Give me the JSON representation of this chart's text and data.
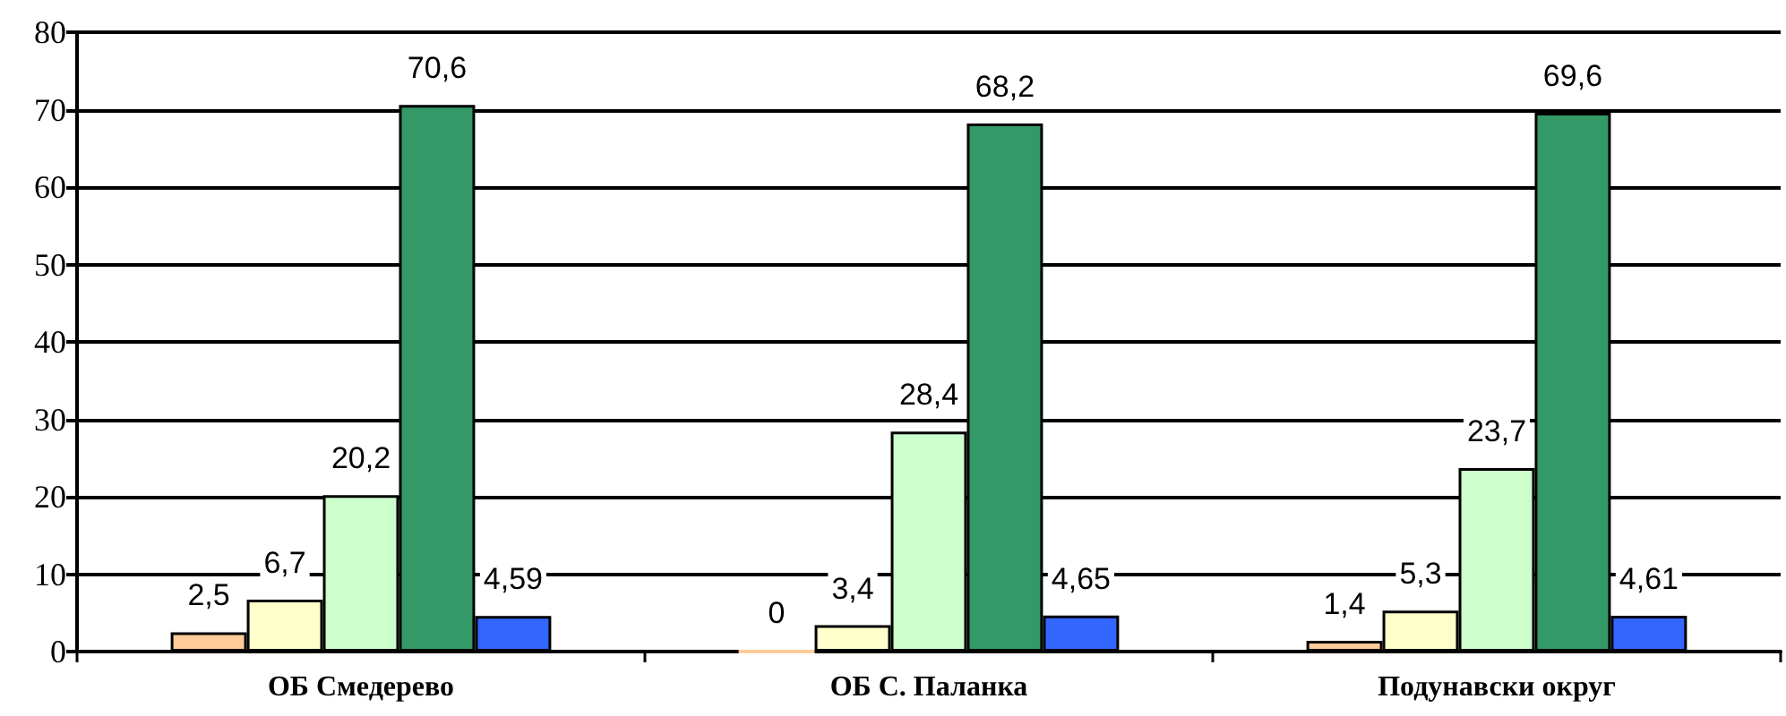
{
  "chart_data": {
    "type": "bar",
    "categories": [
      "ОБ Смедерево",
      "ОБ С. Паланка",
      "Подунавски округ"
    ],
    "series": [
      {
        "color": "#ffcc99",
        "values": [
          2.5,
          0,
          1.4
        ],
        "value_labels": [
          "2,5",
          "0",
          "1,4"
        ]
      },
      {
        "color": "#ffffcc",
        "values": [
          6.7,
          3.4,
          5.3
        ],
        "value_labels": [
          "6,7",
          "3,4",
          "5,3"
        ]
      },
      {
        "color": "#ccffcc",
        "values": [
          20.2,
          28.4,
          23.7
        ],
        "value_labels": [
          "20,2",
          "28,4",
          "23,7"
        ]
      },
      {
        "color": "#339966",
        "values": [
          70.6,
          68.2,
          69.6
        ],
        "value_labels": [
          "70,6",
          "68,2",
          "69,6"
        ]
      },
      {
        "color": "#3366ff",
        "values": [
          4.59,
          4.65,
          4.61
        ],
        "value_labels": [
          "4,59",
          "4,65",
          "4,61"
        ]
      }
    ],
    "ylim": [
      0,
      80
    ],
    "yticks": [
      0,
      10,
      20,
      30,
      40,
      50,
      60,
      70,
      80
    ],
    "grid": "y"
  }
}
